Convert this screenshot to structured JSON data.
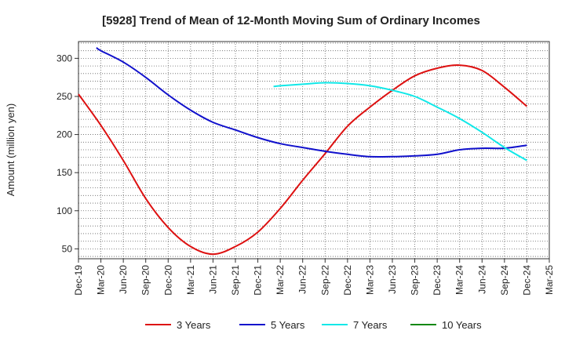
{
  "chart_data": {
    "type": "line",
    "title": "[5928]  Trend of Mean of 12-Month Moving Sum of Ordinary Incomes",
    "xlabel": "",
    "ylabel": "Amount (million yen)",
    "ylim": [
      37,
      322
    ],
    "yticks": [
      50,
      100,
      150,
      200,
      250,
      300
    ],
    "x_ticks": [
      "Dec-19",
      "Mar-20",
      "Jun-20",
      "Sep-20",
      "Dec-20",
      "Mar-21",
      "Jun-21",
      "Sep-21",
      "Dec-21",
      "Mar-22",
      "Jun-22",
      "Sep-22",
      "Dec-22",
      "Mar-23",
      "Jun-23",
      "Sep-23",
      "Dec-23",
      "Mar-24",
      "Jun-24",
      "Sep-24",
      "Dec-24",
      "Mar-25"
    ],
    "grid": true,
    "legend_position": "bottom",
    "series": [
      {
        "name": "3 Years",
        "color": "#dd1111",
        "x": [
          0,
          1,
          2,
          3,
          4,
          5,
          6,
          7,
          8,
          9,
          10,
          11,
          12,
          13,
          14,
          15,
          16,
          17,
          18,
          19,
          20
        ],
        "values": [
          253,
          212,
          166,
          116,
          78,
          53,
          43,
          53,
          72,
          103,
          140,
          175,
          211,
          236,
          258,
          277,
          287,
          291,
          284,
          262,
          237
        ]
      },
      {
        "name": "5 Years",
        "color": "#1111cc",
        "x": [
          0.8,
          1,
          2,
          3,
          4,
          5,
          6,
          7,
          8,
          9,
          10,
          11,
          12,
          13,
          14,
          15,
          16,
          17,
          18,
          19,
          20
        ],
        "values": [
          314,
          310,
          295,
          275,
          252,
          232,
          216,
          206,
          196,
          188,
          183,
          178,
          174,
          171,
          171,
          172,
          174,
          180,
          182,
          182,
          186
        ]
      },
      {
        "name": "7 Years",
        "color": "#11e8e8",
        "x": [
          8.7,
          9,
          10,
          11,
          12,
          13,
          14,
          15,
          16,
          17,
          18,
          19,
          20
        ],
        "values": [
          263,
          264,
          266,
          268,
          267,
          264,
          258,
          250,
          236,
          221,
          203,
          183,
          166
        ]
      },
      {
        "name": "10 Years",
        "color": "#118811",
        "x": [],
        "values": []
      }
    ]
  }
}
